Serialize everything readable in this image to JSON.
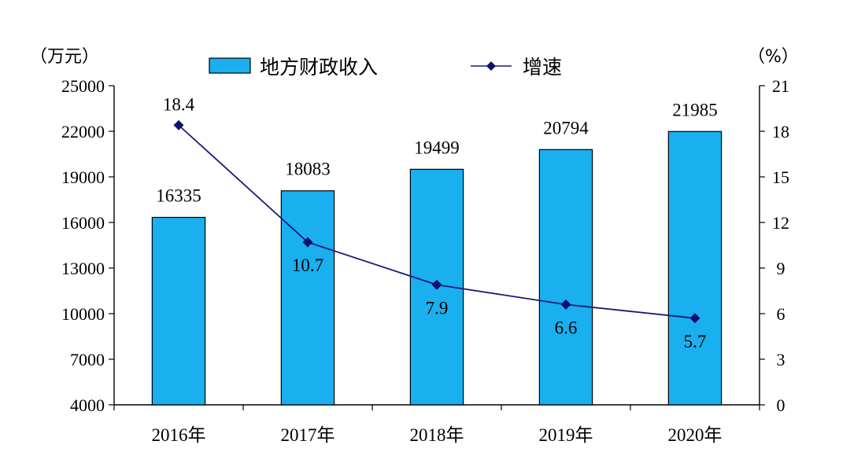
{
  "chart_data": {
    "type": "bar+line",
    "categories": [
      "2016年",
      "2017年",
      "2018年",
      "2019年",
      "2020年"
    ],
    "series": [
      {
        "name": "地方财政收入",
        "type": "bar",
        "axis": "left",
        "values": [
          16335,
          18083,
          19499,
          20794,
          21985
        ],
        "labels": [
          "16335",
          "18083",
          "19499",
          "20794",
          "21985"
        ]
      },
      {
        "name": "增速",
        "type": "line",
        "axis": "right",
        "values": [
          18.4,
          10.7,
          7.9,
          6.6,
          5.7
        ],
        "labels": [
          "18.4",
          "10.7",
          "7.9",
          "6.6",
          "5.7"
        ]
      }
    ],
    "y_left": {
      "unit": "（万元）",
      "ylim": [
        4000,
        25000
      ],
      "ticks": [
        "4000",
        "7000",
        "10000",
        "13000",
        "16000",
        "19000",
        "22000",
        "25000"
      ]
    },
    "y_right": {
      "unit": "（%）",
      "ylim": [
        0,
        21
      ],
      "ticks": [
        "0",
        "3",
        "6",
        "9",
        "12",
        "15",
        "18",
        "21"
      ]
    },
    "legend_position": "top",
    "grid": false,
    "colors": {
      "bar_fill": "#1AAFEF",
      "bar_stroke": "#000000",
      "line": "#1B1B7A",
      "marker": "#10106E",
      "axis": "#000000"
    }
  }
}
